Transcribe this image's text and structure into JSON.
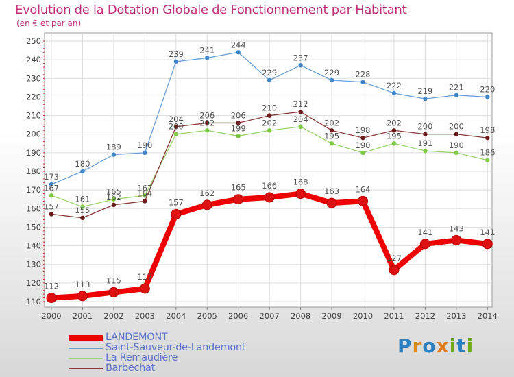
{
  "header": {
    "title": "Evolution de la Dotation Globale de Fonctionnement par Habitant",
    "subtitle": "(en € et par an)"
  },
  "logo": {
    "text": "Proxiti",
    "colors": [
      "#2a7fc0",
      "#e08a1a",
      "#2a7fc0",
      "#e07a1a",
      "#6aaa1a",
      "#2a7fc0",
      "#6aaa1a"
    ]
  },
  "chart_data": {
    "type": "line",
    "title": "Evolution de la Dotation Globale de Fonctionnement par Habitant",
    "subtitle": "(en € et par an)",
    "xlabel": "",
    "ylabel": "",
    "x": [
      "2000",
      "2001",
      "2002",
      "2003",
      "2004",
      "2005",
      "2006",
      "2007",
      "2008",
      "2009",
      "2010",
      "2011",
      "2012",
      "2013",
      "2014"
    ],
    "ylim": [
      110,
      250
    ],
    "yticks": [
      110,
      120,
      130,
      140,
      150,
      160,
      170,
      180,
      190,
      200,
      210,
      220,
      230,
      240,
      250
    ],
    "grid": true,
    "legend_position": "bottom-left",
    "series": [
      {
        "name": "LANDEMONT",
        "color": "#ee0000",
        "marker_color": "#dd1111",
        "emphasis": true,
        "values": [
          112,
          113,
          115,
          117,
          157,
          162,
          165,
          166,
          168,
          163,
          164,
          127,
          141,
          143,
          141
        ]
      },
      {
        "name": "Saint-Sauveur-de-Landemont",
        "color": "#6a9fd6",
        "marker_color": "#3f86c8",
        "emphasis": false,
        "values": [
          173,
          180,
          189,
          190,
          239,
          241,
          244,
          229,
          237,
          229,
          228,
          222,
          219,
          221,
          220
        ]
      },
      {
        "name": "La Remaudière",
        "color": "#99d36a",
        "marker_color": "#7cc845",
        "emphasis": false,
        "values": [
          167,
          161,
          165,
          167,
          200,
          202,
          199,
          202,
          204,
          195,
          190,
          195,
          191,
          190,
          186
        ]
      },
      {
        "name": "Barbechat",
        "color": "#8a3a3a",
        "marker_color": "#6b1a1a",
        "emphasis": false,
        "values": [
          157,
          155,
          162,
          164,
          204,
          206,
          206,
          210,
          212,
          202,
          198,
          202,
          200,
          200,
          198
        ]
      }
    ]
  }
}
